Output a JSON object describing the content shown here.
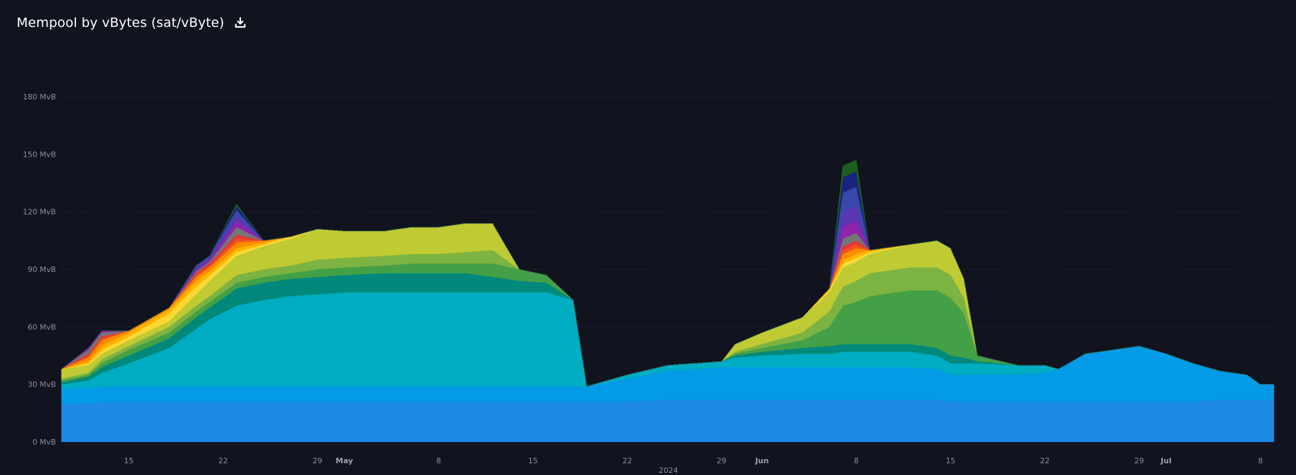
{
  "header": {
    "title": "Mempool by vBytes (sat/vByte)",
    "download_icon": "download-icon"
  },
  "chart_data": {
    "type": "area",
    "stacked": true,
    "title": "Mempool by vBytes (sat/vByte)",
    "xlabel": "2024",
    "ylabel": "",
    "ylim": [
      0,
      180
    ],
    "yunit": "MvB",
    "y_ticks": [
      0,
      30,
      60,
      90,
      120,
      150,
      180
    ],
    "y_tick_labels": [
      "0 MvB",
      "30 MvB",
      "60 MvB",
      "90 MvB",
      "120 MvB",
      "150 MvB",
      "180 MvB"
    ],
    "grid": true,
    "x_range": [
      "2024-04-10",
      "2024-07-09"
    ],
    "x_ticks": [
      {
        "date": "2024-04-15",
        "label": "15",
        "bold": false
      },
      {
        "date": "2024-04-22",
        "label": "22",
        "bold": false
      },
      {
        "date": "2024-04-29",
        "label": "29",
        "bold": false
      },
      {
        "date": "2024-05-01",
        "label": "May",
        "bold": true
      },
      {
        "date": "2024-05-08",
        "label": "8",
        "bold": false
      },
      {
        "date": "2024-05-15",
        "label": "15",
        "bold": false
      },
      {
        "date": "2024-05-22",
        "label": "22",
        "bold": false
      },
      {
        "date": "2024-05-29",
        "label": "29",
        "bold": false
      },
      {
        "date": "2024-06-01",
        "label": "Jun",
        "bold": true
      },
      {
        "date": "2024-06-08",
        "label": "8",
        "bold": false
      },
      {
        "date": "2024-06-15",
        "label": "15",
        "bold": false
      },
      {
        "date": "2024-06-22",
        "label": "22",
        "bold": false
      },
      {
        "date": "2024-06-29",
        "label": "29",
        "bold": false
      },
      {
        "date": "2024-07-01",
        "label": "Jul",
        "bold": true
      },
      {
        "date": "2024-07-08",
        "label": "8",
        "bold": false
      }
    ],
    "year_label": "2024",
    "x": [
      "2024-04-10",
      "2024-04-12",
      "2024-04-13",
      "2024-04-15",
      "2024-04-18",
      "2024-04-20",
      "2024-04-21",
      "2024-04-23",
      "2024-04-25",
      "2024-04-27",
      "2024-04-29",
      "2024-05-01",
      "2024-05-04",
      "2024-05-06",
      "2024-05-08",
      "2024-05-10",
      "2024-05-12",
      "2024-05-14",
      "2024-05-16",
      "2024-05-18",
      "2024-05-19",
      "2024-05-22",
      "2024-05-25",
      "2024-05-29",
      "2024-05-30",
      "2024-06-01",
      "2024-06-04",
      "2024-06-06",
      "2024-06-07",
      "2024-06-08",
      "2024-06-09",
      "2024-06-12",
      "2024-06-14",
      "2024-06-15",
      "2024-06-16",
      "2024-06-17",
      "2024-06-20",
      "2024-06-22",
      "2024-06-23",
      "2024-06-25",
      "2024-06-27",
      "2024-06-29",
      "2024-07-01",
      "2024-07-03",
      "2024-07-05",
      "2024-07-07",
      "2024-07-08",
      "2024-07-09"
    ],
    "series": [
      {
        "color": "#1e88e5",
        "values": [
          20,
          20,
          21,
          21,
          21,
          21,
          21,
          21,
          21,
          21,
          21,
          21,
          21,
          21,
          21,
          21,
          21,
          21,
          21,
          21,
          21,
          21,
          22,
          22,
          22,
          22,
          22,
          22,
          22,
          22,
          22,
          22,
          22,
          21,
          21,
          21,
          21,
          21,
          21,
          21,
          21,
          21,
          21,
          21,
          22,
          22,
          22,
          22
        ]
      },
      {
        "color": "#039be5",
        "values": [
          8,
          8,
          8,
          8,
          8,
          8,
          8,
          8,
          8,
          8,
          8,
          8,
          8,
          8,
          8,
          8,
          8,
          8,
          8,
          8,
          8,
          12,
          15,
          17,
          17,
          17,
          17,
          17,
          17,
          17,
          17,
          17,
          16,
          14,
          14,
          14,
          14,
          15,
          17,
          25,
          27,
          29,
          25,
          20,
          15,
          13,
          8,
          8
        ]
      },
      {
        "color": "#00acc1",
        "values": [
          2,
          4,
          7,
          12,
          20,
          30,
          35,
          42,
          45,
          47,
          48,
          49,
          49,
          49,
          49,
          49,
          49,
          49,
          49,
          45,
          0,
          2,
          3,
          3,
          5,
          6,
          7,
          7,
          8,
          8,
          8,
          8,
          7,
          6,
          6,
          6,
          5,
          4,
          0,
          0,
          0,
          0,
          0,
          0,
          0,
          0,
          0,
          0
        ]
      },
      {
        "color": "#00897b",
        "values": [
          1,
          2,
          3,
          4,
          5,
          6,
          6,
          9,
          9,
          9,
          9,
          9,
          10,
          10,
          10,
          10,
          8,
          6,
          5,
          0,
          0,
          0,
          0,
          0,
          1,
          2,
          3,
          4,
          4,
          4,
          4,
          4,
          4,
          4,
          3,
          1,
          0,
          0,
          0,
          0,
          0,
          0,
          0,
          0,
          0,
          0,
          0,
          0
        ]
      },
      {
        "color": "#43a047",
        "values": [
          1,
          1,
          2,
          3,
          3,
          3,
          3,
          3,
          3,
          3,
          4,
          4,
          4,
          5,
          5,
          5,
          7,
          6,
          4,
          0,
          0,
          0,
          0,
          0,
          1,
          2,
          4,
          10,
          20,
          22,
          25,
          28,
          30,
          30,
          23,
          3,
          0,
          0,
          0,
          0,
          0,
          0,
          0,
          0,
          0,
          0,
          0,
          0
        ]
      },
      {
        "color": "#7cb342",
        "values": [
          1,
          1,
          2,
          2,
          3,
          3,
          3,
          4,
          4,
          4,
          5,
          5,
          5,
          5,
          5,
          6,
          7,
          0,
          0,
          0,
          0,
          0,
          0,
          0,
          1,
          2,
          4,
          8,
          10,
          11,
          12,
          12,
          12,
          12,
          8,
          0,
          0,
          0,
          0,
          0,
          0,
          0,
          0,
          0,
          0,
          0,
          0,
          0
        ]
      },
      {
        "color": "#c0ca33",
        "values": [
          5,
          4,
          3,
          3,
          3,
          6,
          8,
          10,
          12,
          14,
          16,
          14,
          13,
          14,
          14,
          15,
          14,
          0,
          0,
          0,
          0,
          0,
          0,
          0,
          4,
          6,
          8,
          10,
          10,
          10,
          10,
          12,
          14,
          14,
          10,
          0,
          0,
          0,
          0,
          0,
          0,
          0,
          0,
          0,
          0,
          0,
          0,
          0
        ]
      },
      {
        "color": "#fdd835",
        "values": [
          0,
          1,
          2,
          2,
          4,
          4,
          3,
          2,
          1,
          1,
          0,
          0,
          0,
          0,
          0,
          0,
          0,
          0,
          0,
          0,
          0,
          0,
          0,
          0,
          0,
          0,
          0,
          1,
          2,
          2,
          1,
          0,
          0,
          0,
          0,
          0,
          0,
          0,
          0,
          0,
          0,
          0,
          0,
          0,
          0,
          0,
          0,
          0
        ]
      },
      {
        "color": "#ffb300",
        "values": [
          0,
          1,
          2,
          2,
          2,
          3,
          2,
          2,
          1,
          0,
          0,
          0,
          0,
          0,
          0,
          0,
          0,
          0,
          0,
          0,
          0,
          0,
          0,
          0,
          0,
          0,
          0,
          1,
          2,
          2,
          1,
          0,
          0,
          0,
          0,
          0,
          0,
          0,
          0,
          0,
          0,
          0,
          0,
          0,
          0,
          0,
          0,
          0
        ]
      },
      {
        "color": "#fb8c00",
        "values": [
          0,
          2,
          3,
          1,
          1,
          2,
          2,
          3,
          1,
          0,
          0,
          0,
          0,
          0,
          0,
          0,
          0,
          0,
          0,
          0,
          0,
          0,
          0,
          0,
          0,
          0,
          0,
          0,
          3,
          3,
          0,
          0,
          0,
          0,
          0,
          0,
          0,
          0,
          0,
          0,
          0,
          0,
          0,
          0,
          0,
          0,
          0,
          0
        ]
      },
      {
        "color": "#f4511e",
        "values": [
          0,
          1,
          1,
          0,
          0,
          1,
          1,
          2,
          0,
          0,
          0,
          0,
          0,
          0,
          0,
          0,
          0,
          0,
          0,
          0,
          0,
          0,
          0,
          0,
          0,
          0,
          0,
          0,
          2,
          2,
          0,
          0,
          0,
          0,
          0,
          0,
          0,
          0,
          0,
          0,
          0,
          0,
          0,
          0,
          0,
          0,
          0,
          0
        ]
      },
      {
        "color": "#e53935",
        "values": [
          0,
          1,
          1,
          0,
          0,
          1,
          1,
          2,
          0,
          0,
          0,
          0,
          0,
          0,
          0,
          0,
          0,
          0,
          0,
          0,
          0,
          0,
          0,
          0,
          0,
          0,
          0,
          0,
          2,
          2,
          0,
          0,
          0,
          0,
          0,
          0,
          0,
          0,
          0,
          0,
          0,
          0,
          0,
          0,
          0,
          0,
          0,
          0
        ]
      },
      {
        "color": "#757575",
        "values": [
          0,
          2,
          2,
          0,
          0,
          1,
          1,
          4,
          0,
          0,
          0,
          0,
          0,
          0,
          0,
          0,
          0,
          0,
          0,
          0,
          0,
          0,
          0,
          0,
          0,
          0,
          0,
          0,
          4,
          4,
          0,
          0,
          0,
          0,
          0,
          0,
          0,
          0,
          0,
          0,
          0,
          0,
          0,
          0,
          0,
          0,
          0,
          0
        ]
      },
      {
        "color": "#8e24aa",
        "values": [
          0,
          1,
          1,
          0,
          0,
          1,
          1,
          3,
          0,
          0,
          0,
          0,
          0,
          0,
          0,
          0,
          0,
          0,
          0,
          0,
          0,
          0,
          0,
          0,
          0,
          0,
          0,
          0,
          6,
          6,
          0,
          0,
          0,
          0,
          0,
          0,
          0,
          0,
          0,
          0,
          0,
          0,
          0,
          0,
          0,
          0,
          0,
          0
        ]
      },
      {
        "color": "#5e35b1",
        "values": [
          0,
          0,
          0,
          0,
          0,
          1,
          1,
          3,
          0,
          0,
          0,
          0,
          0,
          0,
          0,
          0,
          0,
          0,
          0,
          0,
          0,
          0,
          0,
          0,
          0,
          0,
          0,
          0,
          8,
          8,
          0,
          0,
          0,
          0,
          0,
          0,
          0,
          0,
          0,
          0,
          0,
          0,
          0,
          0,
          0,
          0,
          0,
          0
        ]
      },
      {
        "color": "#3949ab",
        "values": [
          0,
          0,
          0,
          0,
          0,
          1,
          1,
          3,
          0,
          0,
          0,
          0,
          0,
          0,
          0,
          0,
          0,
          0,
          0,
          0,
          0,
          0,
          0,
          0,
          0,
          0,
          0,
          0,
          10,
          10,
          0,
          0,
          0,
          0,
          0,
          0,
          0,
          0,
          0,
          0,
          0,
          0,
          0,
          0,
          0,
          0,
          0,
          0
        ]
      },
      {
        "color": "#1a237e",
        "values": [
          0,
          0,
          0,
          0,
          0,
          0,
          0,
          2,
          0,
          0,
          0,
          0,
          0,
          0,
          0,
          0,
          0,
          0,
          0,
          0,
          0,
          0,
          0,
          0,
          0,
          0,
          0,
          0,
          8,
          8,
          0,
          0,
          0,
          0,
          0,
          0,
          0,
          0,
          0,
          0,
          0,
          0,
          0,
          0,
          0,
          0,
          0,
          0
        ]
      },
      {
        "color": "#1b5e20",
        "values": [
          0,
          0,
          0,
          0,
          0,
          0,
          0,
          1,
          0,
          0,
          0,
          0,
          0,
          0,
          0,
          0,
          0,
          0,
          0,
          0,
          0,
          0,
          0,
          0,
          0,
          0,
          0,
          0,
          6,
          6,
          0,
          0,
          0,
          0,
          0,
          0,
          0,
          0,
          0,
          0,
          0,
          0,
          0,
          0,
          0,
          0,
          0,
          0
        ]
      }
    ]
  }
}
